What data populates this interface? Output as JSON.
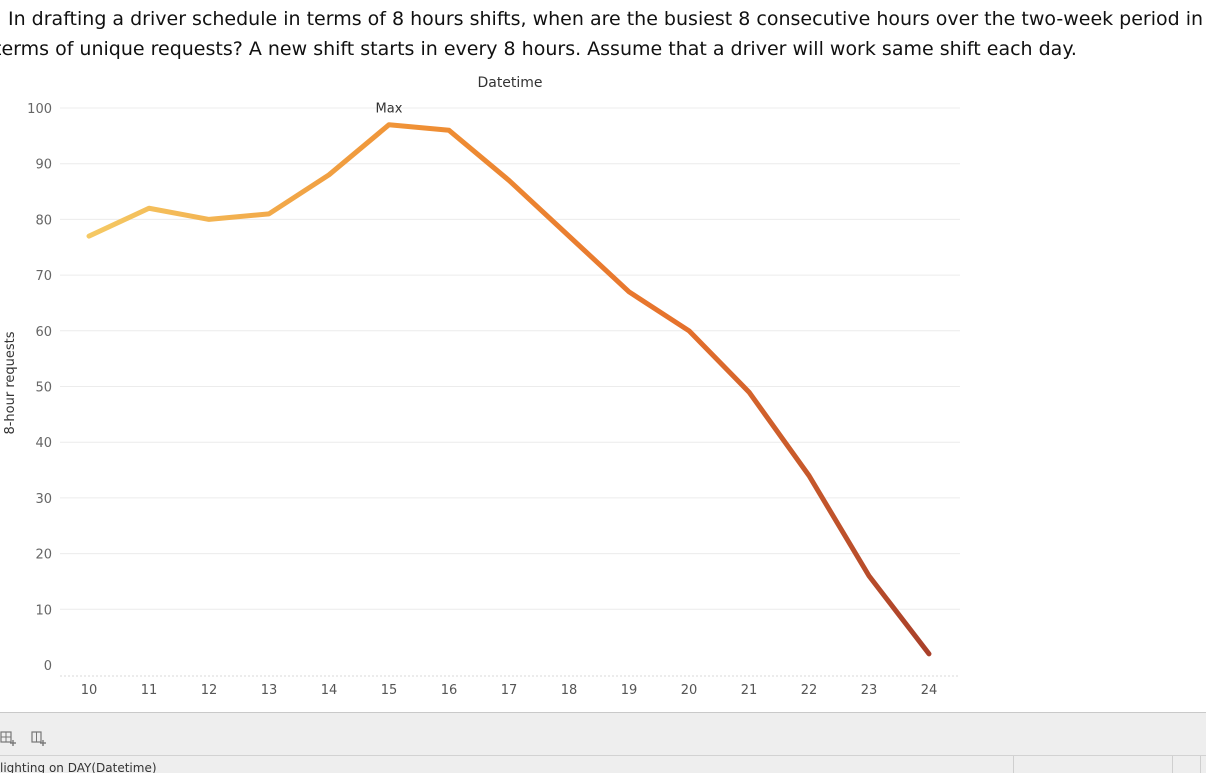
{
  "question": {
    "line1": "In drafting a driver schedule in terms of 8 hours shifts, when are the busiest 8 consecutive hours over the two-week period in",
    "line2": "terms of unique requests? A new shift starts in every 8 hours. Assume that a driver will work same shift each day."
  },
  "chart_data": {
    "type": "line",
    "title": "Datetime",
    "xlabel": "",
    "ylabel": "8-hour requests",
    "x": [
      10,
      11,
      12,
      13,
      14,
      15,
      16,
      17,
      18,
      19,
      20,
      21,
      22,
      23,
      24
    ],
    "values": [
      77,
      82,
      80,
      81,
      88,
      97,
      96,
      87,
      77,
      67,
      60,
      49,
      34,
      16,
      2
    ],
    "x_ticks": [
      "10",
      "11",
      "12",
      "13",
      "14",
      "15",
      "16",
      "17",
      "18",
      "19",
      "20",
      "21",
      "22",
      "23",
      "24"
    ],
    "y_ticks": [
      0,
      10,
      20,
      30,
      40,
      50,
      60,
      70,
      80,
      90,
      100
    ],
    "ylim": [
      0,
      100
    ],
    "annotation": {
      "text": "Max",
      "x": 15
    },
    "color_gradient": [
      "#f5c964",
      "#ef8f34",
      "#e6722c",
      "#a9402a"
    ],
    "grid": true
  },
  "footer": {
    "status": "lighting on DAY(Datetime)",
    "icon1": "add-row-icon",
    "icon2": "add-column-icon"
  }
}
